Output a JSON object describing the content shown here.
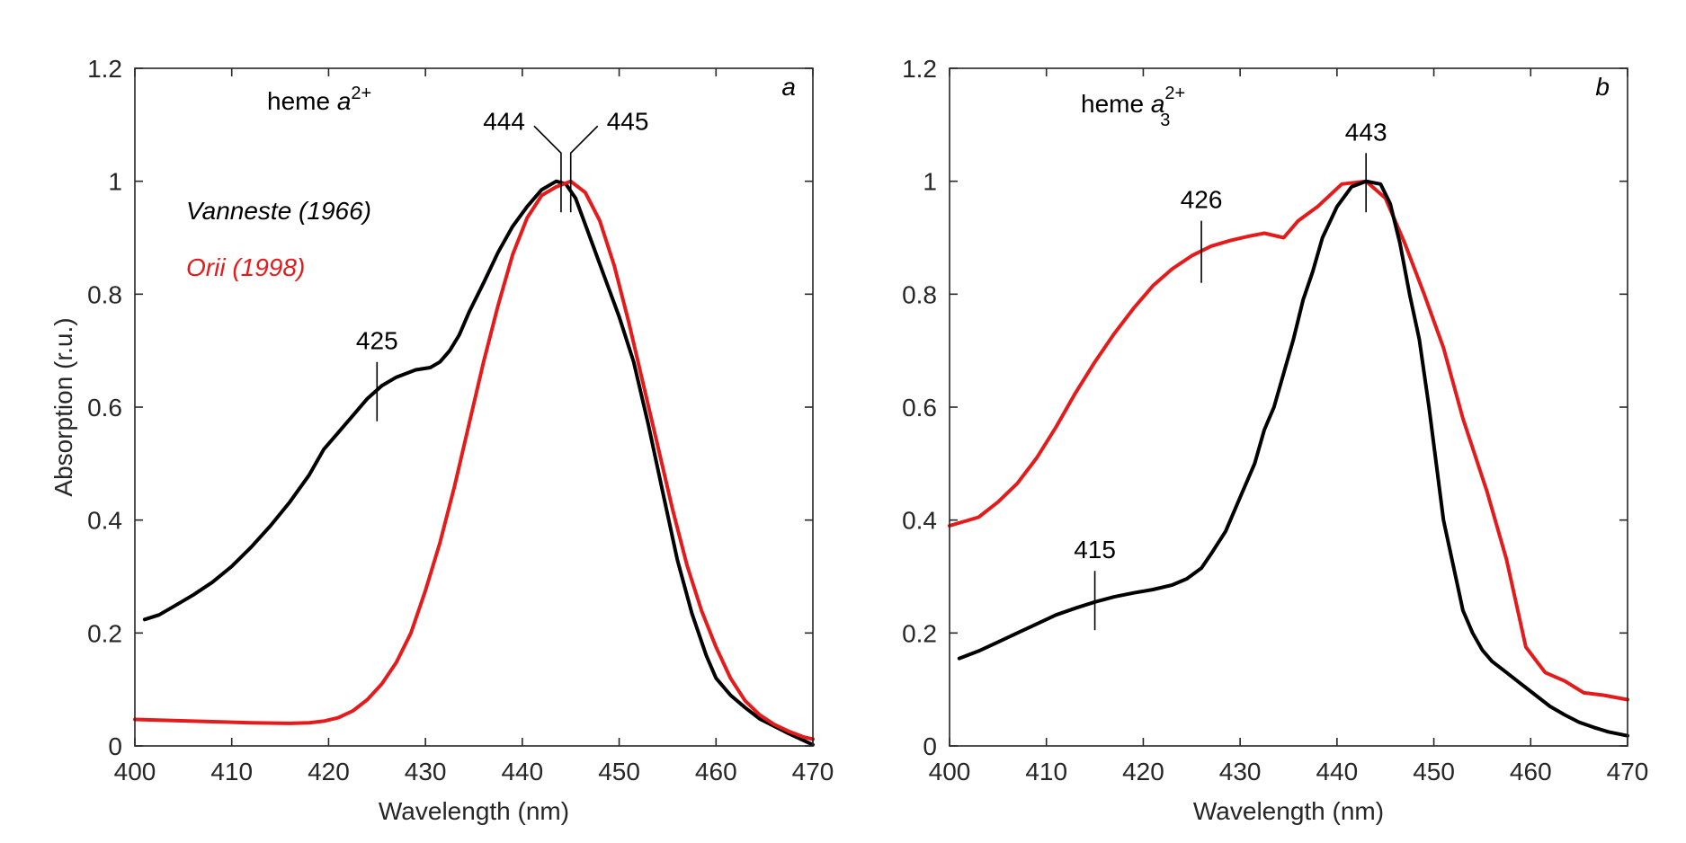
{
  "chart_data": [
    {
      "type": "line",
      "panel_letter": "a",
      "title_main": "heme ",
      "title_italic": "a",
      "title_sup": "2+",
      "title_sub": "",
      "xlabel": "Wavelength (nm)",
      "ylabel": "Absorption (r.u.)",
      "xlim": [
        400,
        470
      ],
      "ylim": [
        0,
        1.2
      ],
      "xticks": [
        400,
        410,
        420,
        430,
        440,
        450,
        460,
        470
      ],
      "yticks": [
        0,
        0.2,
        0.4,
        0.6,
        0.8,
        1,
        1.2
      ],
      "xtick_labels": [
        "400",
        "410",
        "420",
        "430",
        "440",
        "450",
        "460",
        "470"
      ],
      "ytick_labels": [
        "0",
        "0.2",
        "0.4",
        "0.6",
        "0.8",
        "1",
        "1.2"
      ],
      "legend": [
        {
          "text": "Vanneste (1966)",
          "color": "#000000"
        },
        {
          "text": "Orii (1998)",
          "color": "#e51b1b"
        }
      ],
      "series": [
        {
          "color": "#000000",
          "x": [
            401,
            402.5,
            404,
            406,
            408,
            410,
            412,
            414,
            416,
            418,
            419.5,
            421,
            422.5,
            424,
            425.5,
            427,
            429,
            430.5,
            431.5,
            432.5,
            433.5,
            434.5,
            436,
            437.5,
            439,
            440.5,
            442,
            443.5,
            444.5,
            445.5,
            447,
            448.5,
            450,
            451.5,
            453,
            454.5,
            456,
            457.5,
            459,
            460,
            461.5,
            463,
            464.5,
            466,
            467.5,
            469,
            470
          ],
          "y": [
            0.224,
            0.232,
            0.247,
            0.267,
            0.29,
            0.318,
            0.352,
            0.39,
            0.432,
            0.48,
            0.525,
            0.555,
            0.585,
            0.615,
            0.638,
            0.653,
            0.666,
            0.67,
            0.68,
            0.7,
            0.728,
            0.768,
            0.82,
            0.874,
            0.92,
            0.955,
            0.985,
            1.0,
            0.995,
            0.97,
            0.9,
            0.83,
            0.76,
            0.68,
            0.57,
            0.45,
            0.33,
            0.235,
            0.16,
            0.12,
            0.09,
            0.068,
            0.048,
            0.035,
            0.022,
            0.01,
            0.002
          ]
        },
        {
          "color": "#e51b1b",
          "x": [
            400,
            404,
            408,
            412,
            416,
            418,
            419.5,
            421,
            422.5,
            424,
            425.5,
            427,
            428.5,
            430,
            431.5,
            433,
            434.5,
            436,
            437.5,
            439,
            440.5,
            442,
            443.5,
            445,
            446.5,
            448,
            449.5,
            451,
            452.5,
            454,
            455.5,
            457,
            458.5,
            460,
            461.5,
            463,
            464.5,
            466,
            467.5,
            469,
            470
          ],
          "y": [
            0.047,
            0.045,
            0.043,
            0.041,
            0.04,
            0.041,
            0.044,
            0.05,
            0.062,
            0.082,
            0.11,
            0.148,
            0.2,
            0.275,
            0.36,
            0.46,
            0.57,
            0.68,
            0.78,
            0.87,
            0.935,
            0.975,
            0.99,
            1.0,
            0.98,
            0.93,
            0.85,
            0.75,
            0.64,
            0.53,
            0.42,
            0.32,
            0.24,
            0.175,
            0.12,
            0.08,
            0.055,
            0.038,
            0.026,
            0.016,
            0.012
          ]
        }
      ],
      "annotations": [
        {
          "label": "425",
          "x": 425,
          "y_low": 0.575,
          "y_high": 0.68
        },
        {
          "label": "444",
          "x": 444,
          "y_low": 0.945,
          "y_high": 1.05
        },
        {
          "label": "445",
          "x": 445,
          "y_low": 0.945,
          "y_high": 1.05
        }
      ]
    },
    {
      "type": "line",
      "panel_letter": "b",
      "title_main": "heme ",
      "title_italic": "a",
      "title_sup": "2+",
      "title_sub": "3",
      "xlabel": "Wavelength (nm)",
      "ylabel": "",
      "xlim": [
        400,
        470
      ],
      "ylim": [
        0,
        1.2
      ],
      "xticks": [
        400,
        410,
        420,
        430,
        440,
        450,
        460,
        470
      ],
      "yticks": [
        0,
        0.2,
        0.4,
        0.6,
        0.8,
        1,
        1.2
      ],
      "xtick_labels": [
        "400",
        "410",
        "420",
        "430",
        "440",
        "450",
        "460",
        "470"
      ],
      "ytick_labels": [
        "0",
        "0.2",
        "0.4",
        "0.6",
        "0.8",
        "1",
        "1.2"
      ],
      "legend": [],
      "series": [
        {
          "color": "#e51b1b",
          "x": [
            400,
            403,
            405,
            407,
            409,
            411,
            413,
            415,
            417,
            419,
            421,
            423,
            425,
            427,
            429,
            431,
            432.5,
            434.5,
            436,
            438,
            440.5,
            443,
            445,
            447,
            449,
            451,
            453,
            455.5,
            457.5,
            459.5,
            461.5,
            463.5,
            465.5,
            467.5,
            470
          ],
          "y": [
            0.39,
            0.405,
            0.432,
            0.465,
            0.51,
            0.565,
            0.625,
            0.68,
            0.73,
            0.775,
            0.815,
            0.845,
            0.868,
            0.885,
            0.895,
            0.903,
            0.908,
            0.9,
            0.93,
            0.955,
            0.995,
            1.0,
            0.97,
            0.89,
            0.8,
            0.705,
            0.58,
            0.45,
            0.33,
            0.175,
            0.13,
            0.115,
            0.094,
            0.09,
            0.082
          ]
        },
        {
          "color": "#000000",
          "x": [
            401,
            403,
            405,
            407,
            409,
            411,
            413,
            415,
            417,
            419,
            421,
            423,
            424.5,
            426,
            427,
            428.5,
            430,
            431.5,
            432.5,
            433.5,
            434.5,
            435.5,
            436.5,
            437.5,
            438.5,
            440,
            441.5,
            443,
            444.5,
            445.5,
            446.5,
            447.5,
            448.5,
            449.5,
            451,
            452,
            453,
            454,
            455,
            456,
            457.5,
            459,
            460.5,
            462,
            463.5,
            465,
            466.5,
            468,
            470
          ],
          "y": [
            0.155,
            0.168,
            0.184,
            0.2,
            0.216,
            0.232,
            0.244,
            0.255,
            0.264,
            0.271,
            0.277,
            0.285,
            0.296,
            0.315,
            0.34,
            0.38,
            0.44,
            0.5,
            0.56,
            0.6,
            0.66,
            0.72,
            0.79,
            0.84,
            0.9,
            0.955,
            0.99,
            1.0,
            0.995,
            0.96,
            0.89,
            0.8,
            0.72,
            0.6,
            0.4,
            0.32,
            0.24,
            0.2,
            0.17,
            0.15,
            0.13,
            0.11,
            0.09,
            0.07,
            0.055,
            0.042,
            0.033,
            0.025,
            0.018
          ]
        }
      ],
      "annotations": [
        {
          "label": "426",
          "x": 426,
          "y_low": 0.82,
          "y_high": 0.93
        },
        {
          "label": "443",
          "x": 443,
          "y_low": 0.945,
          "y_high": 1.05
        },
        {
          "label": "415",
          "x": 415,
          "y_low": 0.205,
          "y_high": 0.31
        }
      ]
    }
  ]
}
